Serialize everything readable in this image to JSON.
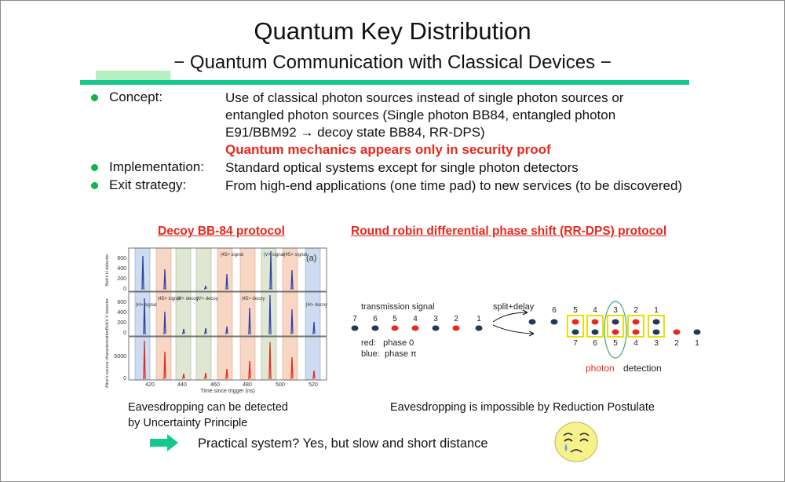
{
  "slide": {
    "title": "Quantum Key Distribution",
    "subtitle": "− Quantum Communication with Classical Devices −",
    "bullets": [
      {
        "label": "Concept:",
        "lines": [
          "Use of classical photon sources instead of single photon sources or",
          "entangled photon sources (Single photon BB84, entangled photon",
          "E91/BBM92 → decoy state BB84, RR-DPS)"
        ],
        "highlight": "Quantum mechanics appears only in security proof"
      },
      {
        "label": "Implementation:",
        "lines": [
          "Standard optical systems except for single photon detectors"
        ]
      },
      {
        "label": "Exit strategy:",
        "lines": [
          "From high-end applications (one time pad) to new services (to be discovered)"
        ]
      }
    ],
    "left_caption": "Decoy BB-84 protocol",
    "right_caption": "Round robin differential phase shift (RR-DPS) protocol",
    "left_note": [
      "Eavesdropping can be detected",
      "by Uncertainty Principle"
    ],
    "right_note": "Eavesdropping is impossible by Reduction Postulate",
    "conclusion": "Practical system?  Yes, but slow and short distance"
  },
  "decoy_figure": {
    "panel_label": "(a)",
    "y_labels": [
      "Bob's H detector",
      "Bob's V detector",
      "Alice's source characterization"
    ],
    "y_ticks_top": [
      "600",
      "400",
      "200",
      "0"
    ],
    "y_ticks_mid": [
      "600",
      "400",
      "200",
      "0"
    ],
    "y_ticks_bottom": [
      "5000",
      "0"
    ],
    "x_ticks": [
      "420",
      "440",
      "460",
      "480",
      "500",
      "520"
    ],
    "x_label": "Time since trigger (ns)",
    "band_labels_top": [
      "|45> signal",
      "|V> signal",
      "|45> signal"
    ],
    "band_labels_mid": [
      "|H> signal",
      "|45> signal",
      "|V> decoy",
      "|V> decoy",
      "|45> decoy",
      "|H> decoy"
    ],
    "colors": {
      "blue_band": "#cddcf0",
      "orange_band": "#f7d6c4",
      "green_band": "#dfe7d3",
      "blue_peak": "#3340a8",
      "red_peak": "#e8281e"
    }
  },
  "rrdps_figure": {
    "transmission_label": "transmission signal",
    "pulse_numbers": [
      "7",
      "6",
      "5",
      "4",
      "3",
      "2",
      "1"
    ],
    "split_label": "split+delay",
    "legend": [
      "red:   phase 0",
      "blue:  phase π"
    ],
    "upper_numbers": [
      "6",
      "5",
      "4",
      "3",
      "2",
      "1"
    ],
    "lower_numbers": [
      "7",
      "6",
      "5",
      "4",
      "3",
      "2",
      "1"
    ],
    "detection_label_1": "photon",
    "detection_label_2": "detection",
    "colors": {
      "red": "#e8281e",
      "blue": "#1f3a5a",
      "box": "#e8e000",
      "ellipse": "#3aaa7a"
    }
  }
}
